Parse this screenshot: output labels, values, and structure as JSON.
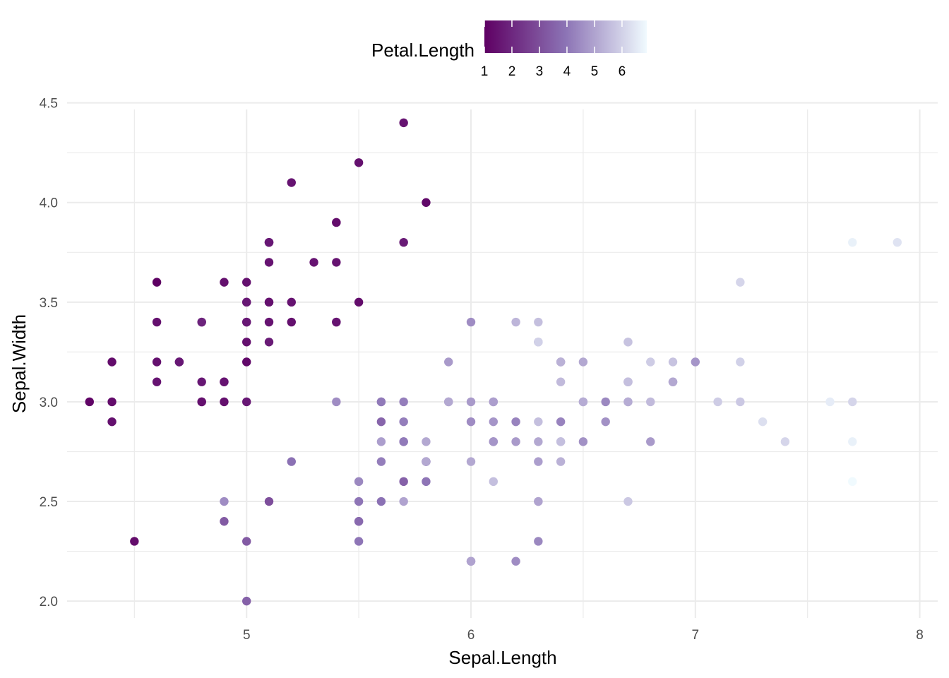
{
  "chart_data": {
    "type": "scatter",
    "xlabel": "Sepal.Length",
    "ylabel": "Sepal.Width",
    "xlim": [
      4.2,
      8.08
    ],
    "ylim": [
      1.88,
      4.52
    ],
    "x_ticks": [
      5,
      6,
      7,
      8
    ],
    "x_tick_labels": [
      "5",
      "6",
      "7",
      "8"
    ],
    "y_ticks": [
      2.0,
      2.5,
      3.0,
      3.5,
      4.0,
      4.5
    ],
    "y_tick_labels": [
      "2.0",
      "2.5",
      "3.0",
      "3.5",
      "4.0",
      "4.5"
    ],
    "grid": true,
    "legend": {
      "title": "Petal.Length",
      "placement": "top",
      "type": "colorbar",
      "min": 1.0,
      "max": 6.9,
      "ticks": [
        1,
        2,
        3,
        4,
        5,
        6
      ],
      "tick_labels": [
        "1",
        "2",
        "3",
        "4",
        "5",
        "6"
      ]
    },
    "colors": {
      "low": "#5e0063",
      "mid": "#8c73b5",
      "high": "#f0fafe"
    },
    "points": [
      [
        5.1,
        3.5,
        1.4
      ],
      [
        4.9,
        3.0,
        1.4
      ],
      [
        4.7,
        3.2,
        1.3
      ],
      [
        4.6,
        3.1,
        1.5
      ],
      [
        5.0,
        3.6,
        1.4
      ],
      [
        5.4,
        3.9,
        1.7
      ],
      [
        4.6,
        3.4,
        1.4
      ],
      [
        5.0,
        3.4,
        1.5
      ],
      [
        4.4,
        2.9,
        1.4
      ],
      [
        4.9,
        3.1,
        1.5
      ],
      [
        5.4,
        3.7,
        1.5
      ],
      [
        4.8,
        3.4,
        1.6
      ],
      [
        4.8,
        3.0,
        1.4
      ],
      [
        4.3,
        3.0,
        1.1
      ],
      [
        5.8,
        4.0,
        1.2
      ],
      [
        5.7,
        4.4,
        1.5
      ],
      [
        5.4,
        3.9,
        1.3
      ],
      [
        5.1,
        3.5,
        1.4
      ],
      [
        5.7,
        3.8,
        1.7
      ],
      [
        5.1,
        3.8,
        1.5
      ],
      [
        5.4,
        3.4,
        1.7
      ],
      [
        5.1,
        3.7,
        1.5
      ],
      [
        4.6,
        3.6,
        1.0
      ],
      [
        5.1,
        3.3,
        1.7
      ],
      [
        4.8,
        3.4,
        1.9
      ],
      [
        5.0,
        3.0,
        1.6
      ],
      [
        5.0,
        3.4,
        1.6
      ],
      [
        5.2,
        3.5,
        1.5
      ],
      [
        5.2,
        3.4,
        1.4
      ],
      [
        4.7,
        3.2,
        1.6
      ],
      [
        4.8,
        3.1,
        1.6
      ],
      [
        5.4,
        3.4,
        1.5
      ],
      [
        5.2,
        4.1,
        1.5
      ],
      [
        5.5,
        4.2,
        1.4
      ],
      [
        4.9,
        3.1,
        1.5
      ],
      [
        5.0,
        3.2,
        1.2
      ],
      [
        5.5,
        3.5,
        1.3
      ],
      [
        4.9,
        3.6,
        1.4
      ],
      [
        4.4,
        3.0,
        1.3
      ],
      [
        5.1,
        3.4,
        1.5
      ],
      [
        5.0,
        3.5,
        1.3
      ],
      [
        4.5,
        2.3,
        1.3
      ],
      [
        4.4,
        3.2,
        1.3
      ],
      [
        5.0,
        3.5,
        1.6
      ],
      [
        5.1,
        3.8,
        1.9
      ],
      [
        4.8,
        3.0,
        1.4
      ],
      [
        5.1,
        3.8,
        1.6
      ],
      [
        4.6,
        3.2,
        1.4
      ],
      [
        5.3,
        3.7,
        1.5
      ],
      [
        5.0,
        3.3,
        1.4
      ],
      [
        7.0,
        3.2,
        4.7
      ],
      [
        6.4,
        3.2,
        4.5
      ],
      [
        6.9,
        3.1,
        4.9
      ],
      [
        5.5,
        2.3,
        4.0
      ],
      [
        6.5,
        2.8,
        4.6
      ],
      [
        5.7,
        2.8,
        4.5
      ],
      [
        6.3,
        3.3,
        4.7
      ],
      [
        4.9,
        2.4,
        3.3
      ],
      [
        6.6,
        2.9,
        4.6
      ],
      [
        5.2,
        2.7,
        3.9
      ],
      [
        5.0,
        2.0,
        3.5
      ],
      [
        5.9,
        3.0,
        4.2
      ],
      [
        6.0,
        2.2,
        4.0
      ],
      [
        6.1,
        2.9,
        4.7
      ],
      [
        5.6,
        2.9,
        3.6
      ],
      [
        6.7,
        3.1,
        4.4
      ],
      [
        5.6,
        3.0,
        4.5
      ],
      [
        5.8,
        2.7,
        4.1
      ],
      [
        6.2,
        2.2,
        4.5
      ],
      [
        5.6,
        2.5,
        3.9
      ],
      [
        5.9,
        3.2,
        4.8
      ],
      [
        6.1,
        2.8,
        4.0
      ],
      [
        6.3,
        2.5,
        4.9
      ],
      [
        6.1,
        2.8,
        4.7
      ],
      [
        6.4,
        2.9,
        4.3
      ],
      [
        6.6,
        3.0,
        4.4
      ],
      [
        6.8,
        2.8,
        4.8
      ],
      [
        6.7,
        3.0,
        5.0
      ],
      [
        6.0,
        2.9,
        4.5
      ],
      [
        5.7,
        2.6,
        3.5
      ],
      [
        5.5,
        2.4,
        3.8
      ],
      [
        5.5,
        2.4,
        3.7
      ],
      [
        5.8,
        2.7,
        3.9
      ],
      [
        6.0,
        2.7,
        5.1
      ],
      [
        5.4,
        3.0,
        4.5
      ],
      [
        6.0,
        3.4,
        4.5
      ],
      [
        6.7,
        3.1,
        4.7
      ],
      [
        6.3,
        2.3,
        4.4
      ],
      [
        5.6,
        3.0,
        4.1
      ],
      [
        5.5,
        2.5,
        4.0
      ],
      [
        5.5,
        2.6,
        4.4
      ],
      [
        6.1,
        3.0,
        4.6
      ],
      [
        5.8,
        2.6,
        4.0
      ],
      [
        5.0,
        2.3,
        3.3
      ],
      [
        5.6,
        2.7,
        4.2
      ],
      [
        5.7,
        3.0,
        4.2
      ],
      [
        5.7,
        2.9,
        4.2
      ],
      [
        6.2,
        2.9,
        4.3
      ],
      [
        5.1,
        2.5,
        3.0
      ],
      [
        5.7,
        2.8,
        4.1
      ],
      [
        6.3,
        3.3,
        6.0
      ],
      [
        5.8,
        2.7,
        5.1
      ],
      [
        7.1,
        3.0,
        5.9
      ],
      [
        6.3,
        2.9,
        5.6
      ],
      [
        6.5,
        3.0,
        5.8
      ],
      [
        7.6,
        3.0,
        6.6
      ],
      [
        4.9,
        2.5,
        4.5
      ],
      [
        7.3,
        2.9,
        6.3
      ],
      [
        6.7,
        2.5,
        5.8
      ],
      [
        7.2,
        3.6,
        6.1
      ],
      [
        6.5,
        3.2,
        5.1
      ],
      [
        6.4,
        2.7,
        5.3
      ],
      [
        6.8,
        3.0,
        5.5
      ],
      [
        5.7,
        2.5,
        5.0
      ],
      [
        5.8,
        2.8,
        5.1
      ],
      [
        6.4,
        3.2,
        5.3
      ],
      [
        6.5,
        3.0,
        5.5
      ],
      [
        7.7,
        3.8,
        6.7
      ],
      [
        7.7,
        2.6,
        6.9
      ],
      [
        6.0,
        2.2,
        5.0
      ],
      [
        6.9,
        3.2,
        5.7
      ],
      [
        5.6,
        2.8,
        4.9
      ],
      [
        7.7,
        2.8,
        6.7
      ],
      [
        6.3,
        2.7,
        4.9
      ],
      [
        6.7,
        3.3,
        5.7
      ],
      [
        7.2,
        3.2,
        6.0
      ],
      [
        6.2,
        2.8,
        4.8
      ],
      [
        6.1,
        3.0,
        4.9
      ],
      [
        6.4,
        2.8,
        5.6
      ],
      [
        7.2,
        3.0,
        5.8
      ],
      [
        7.4,
        2.8,
        6.1
      ],
      [
        7.9,
        3.8,
        6.4
      ],
      [
        6.4,
        2.8,
        5.6
      ],
      [
        6.3,
        2.8,
        5.1
      ],
      [
        6.1,
        2.6,
        5.6
      ],
      [
        7.7,
        3.0,
        6.1
      ],
      [
        6.3,
        3.4,
        5.6
      ],
      [
        6.4,
        3.1,
        5.5
      ],
      [
        6.0,
        3.0,
        4.8
      ],
      [
        6.9,
        3.1,
        5.4
      ],
      [
        6.7,
        3.1,
        5.6
      ],
      [
        6.9,
        3.1,
        5.1
      ],
      [
        5.8,
        2.7,
        5.1
      ],
      [
        6.8,
        3.2,
        5.9
      ],
      [
        6.7,
        3.3,
        5.7
      ],
      [
        6.7,
        3.0,
        5.2
      ],
      [
        6.3,
        2.5,
        5.0
      ],
      [
        6.5,
        3.0,
        5.2
      ],
      [
        6.2,
        3.4,
        5.4
      ],
      [
        5.9,
        3.0,
        5.1
      ]
    ]
  }
}
